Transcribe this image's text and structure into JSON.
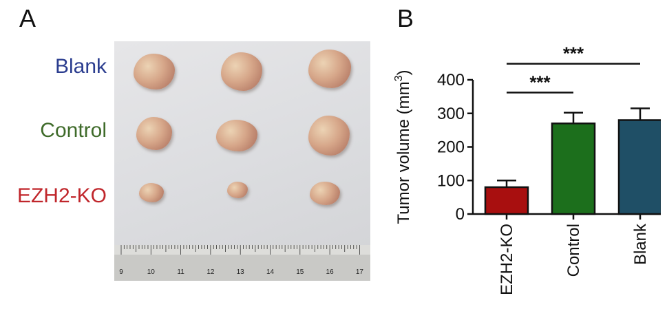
{
  "panel_a": {
    "letter": "A",
    "row_labels": [
      {
        "text": "Blank",
        "color": "#2b3d8f"
      },
      {
        "text": "Control",
        "color": "#3f6b2a"
      },
      {
        "text": "EZH2-KO",
        "color": "#c0262b"
      }
    ],
    "ruler_numbers": [
      "9",
      "10",
      "11",
      "12",
      "13",
      "14",
      "15",
      "16",
      "17"
    ]
  },
  "panel_b": {
    "letter": "B",
    "chart_data": {
      "type": "bar",
      "categories": [
        "EZH2-KO",
        "Control",
        "Blank"
      ],
      "values": [
        80,
        270,
        280
      ],
      "errors": [
        20,
        32,
        35
      ],
      "colors": [
        "#a80f0f",
        "#1c6f1c",
        "#1f4f66"
      ],
      "ylabel": "Tumor volume (mm",
      "ylabel_superscript": "3",
      "ylabel_close": ")",
      "yticks": [
        0,
        100,
        200,
        300,
        400
      ],
      "ylim": [
        0,
        400
      ],
      "significance": [
        {
          "from": 0,
          "to": 1,
          "label": "***"
        },
        {
          "from": 0,
          "to": 2,
          "label": "***"
        }
      ]
    }
  }
}
